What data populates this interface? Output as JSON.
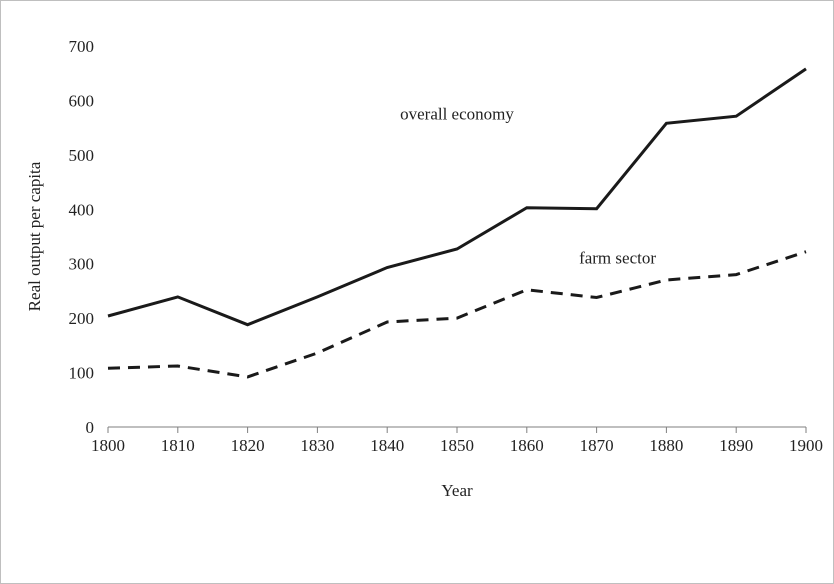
{
  "chart_data": {
    "type": "line",
    "title": "",
    "xlabel": "Year",
    "ylabel": "Real output per capita",
    "x": [
      1800,
      1810,
      1820,
      1830,
      1840,
      1850,
      1860,
      1870,
      1880,
      1890,
      1900
    ],
    "xlim": [
      1800,
      1900
    ],
    "ylim": [
      0,
      700
    ],
    "yticks": [
      0,
      100,
      200,
      300,
      400,
      500,
      600,
      700
    ],
    "grid": false,
    "legend": "none",
    "series": [
      {
        "label": "overall economy",
        "style": "solid",
        "color": "#1a1a1a",
        "values": [
          204,
          239,
          188,
          239,
          293,
          327,
          403,
          401,
          558,
          571,
          658
        ]
      },
      {
        "label": "farm sector",
        "style": "dashed",
        "color": "#1a1a1a",
        "values": [
          108,
          112,
          92,
          136,
          193,
          200,
          252,
          238,
          270,
          280,
          322
        ]
      }
    ],
    "annotations": [
      {
        "text": "overall economy",
        "x": 1850,
        "y": 565
      },
      {
        "text": "farm sector",
        "x": 1873,
        "y": 300
      }
    ]
  }
}
